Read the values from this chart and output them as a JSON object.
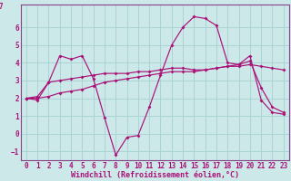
{
  "xlabel": "Windchill (Refroidissement éolien,°C)",
  "background_color": "#cce8e8",
  "grid_color": "#aad4d4",
  "line_color": "#aa1177",
  "spine_color": "#884488",
  "xlim": [
    -0.5,
    23.5
  ],
  "ylim": [
    -1.5,
    7.3
  ],
  "xticks": [
    0,
    1,
    2,
    3,
    4,
    5,
    6,
    7,
    8,
    9,
    10,
    11,
    12,
    13,
    14,
    15,
    16,
    17,
    18,
    19,
    20,
    21,
    22,
    23
  ],
  "yticks": [
    -1,
    0,
    1,
    2,
    3,
    4,
    5,
    6
  ],
  "series": [
    [
      2.0,
      1.9,
      2.9,
      4.4,
      4.2,
      4.4,
      3.1,
      0.9,
      -1.2,
      -0.2,
      -0.1,
      1.5,
      3.3,
      5.0,
      6.0,
      6.6,
      6.5,
      6.1,
      4.0,
      3.9,
      4.4,
      1.9,
      1.2,
      1.1
    ],
    [
      2.0,
      2.1,
      2.9,
      3.0,
      3.1,
      3.2,
      3.3,
      3.4,
      3.4,
      3.4,
      3.5,
      3.5,
      3.6,
      3.7,
      3.7,
      3.6,
      3.6,
      3.7,
      3.8,
      3.8,
      3.9,
      3.8,
      3.7,
      3.6
    ],
    [
      2.0,
      2.0,
      2.1,
      2.3,
      2.4,
      2.5,
      2.7,
      2.9,
      3.0,
      3.1,
      3.2,
      3.3,
      3.4,
      3.5,
      3.5,
      3.5,
      3.6,
      3.7,
      3.8,
      3.9,
      4.1,
      2.6,
      1.5,
      1.2
    ]
  ],
  "tick_fontsize": 5.5,
  "xlabel_fontsize": 6.0
}
